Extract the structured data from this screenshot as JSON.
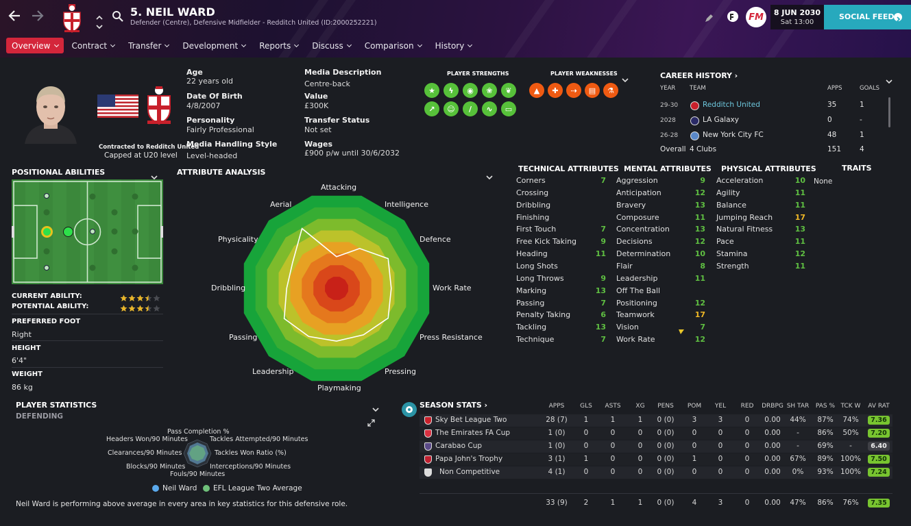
{
  "header": {
    "title": "5. NEIL WARD",
    "subtitle": "Defender (Centre), Defensive Midfielder - Redditch United (ID:2000252221)",
    "date": "8 JUN 2030",
    "time": "Sat 13:00",
    "social_feed": "SOCIAL FEED",
    "fm_logo": "FM"
  },
  "tabs": [
    "Overview",
    "Contract",
    "Transfer",
    "Development",
    "Reports",
    "Discuss",
    "Comparison",
    "History"
  ],
  "player": {
    "contract_line": "Contracted to Redditch United",
    "capped_line": "Capped at U20 level",
    "age_label": "Age",
    "age": "22 years old",
    "dob_label": "Date Of Birth",
    "dob": "4/8/2007",
    "personality_label": "Personality",
    "personality": "Fairly Professional",
    "media_style_label": "Media Handling Style",
    "media_style": "Level-headed",
    "media_desc_label": "Media Description",
    "media_desc": "Centre-back",
    "value_label": "Value",
    "value": "£300K",
    "transfer_label": "Transfer Status",
    "transfer": "Not set",
    "wages_label": "Wages",
    "wages": "£900 p/w until 30/6/2032"
  },
  "strengths": {
    "title": "PLAYER STRENGTHS",
    "icons": [
      "star-icon",
      "lightning-icon",
      "ball-icon",
      "rings-icon",
      "leaves-icon",
      "trend-icon",
      "head-icon",
      "leg-icon",
      "wave-icon",
      "pitch-icon"
    ],
    "color": "#57c13a"
  },
  "weaknesses": {
    "title": "PLAYER WEAKNESSES",
    "icons": [
      "boot-icon",
      "cross-icon",
      "runner-icon",
      "clipboard-icon",
      "flask-icon"
    ],
    "color": "#ef5a12"
  },
  "career": {
    "title": "CAREER HISTORY",
    "cols": [
      "YEAR",
      "TEAM",
      "APPS",
      "GOALS"
    ],
    "rows": [
      {
        "year": "29-30",
        "team": "Redditch United",
        "apps": "35",
        "goals": "1"
      },
      {
        "year": "2028",
        "team": "LA Galaxy",
        "apps": "0",
        "goals": "-"
      },
      {
        "year": "26-28",
        "team": "New York City FC",
        "apps": "48",
        "goals": "1"
      }
    ],
    "total": {
      "label": "Overall",
      "team": "4 Clubs",
      "apps": "151",
      "goals": "4"
    }
  },
  "positional": {
    "title": "POSITIONAL ABILITIES",
    "current_label": "CURRENT ABILITY:",
    "potential_label": "POTENTIAL ABILITY:",
    "current_stars": 3.5,
    "potential_stars": 3.5,
    "foot_label": "PREFERRED FOOT",
    "foot": "Right",
    "height_label": "HEIGHT",
    "height": "6'4\"",
    "weight_label": "WEIGHT",
    "weight": "86 kg"
  },
  "attribute_analysis": {
    "title": "ATTRIBUTE ANALYSIS",
    "axes": [
      "Attacking",
      "Intelligence",
      "Defence",
      "Work Rate",
      "Press Resistance",
      "Pressing",
      "Playmaking",
      "Leadership",
      "Passing",
      "Dribbling",
      "Physicality",
      "Aerial"
    ],
    "values": [
      0.33,
      0.48,
      0.62,
      0.57,
      0.62,
      0.56,
      0.55,
      0.58,
      0.63,
      0.52,
      0.53,
      0.72
    ],
    "ring_colors": [
      "#17a43a",
      "#37ad33",
      "#7dbb2c",
      "#bcc22a",
      "#e7a123",
      "#e5781d",
      "#d9471a",
      "#c82118"
    ]
  },
  "technical": {
    "title": "TECHNICAL ATTRIBUTES",
    "items": [
      {
        "name": "Corners",
        "value": "7",
        "c": "g"
      },
      {
        "name": "Crossing",
        "value": "",
        "c": "g"
      },
      {
        "name": "Dribbling",
        "value": "",
        "c": "g"
      },
      {
        "name": "Finishing",
        "value": "",
        "c": "g"
      },
      {
        "name": "First Touch",
        "value": "7",
        "c": "g"
      },
      {
        "name": "Free Kick Taking",
        "value": "9",
        "c": "g"
      },
      {
        "name": "Heading",
        "value": "11",
        "c": "g"
      },
      {
        "name": "Long Shots",
        "value": "",
        "c": "g"
      },
      {
        "name": "Long Throws",
        "value": "9",
        "c": "g"
      },
      {
        "name": "Marking",
        "value": "13",
        "c": "g"
      },
      {
        "name": "Passing",
        "value": "7",
        "c": "g"
      },
      {
        "name": "Penalty Taking",
        "value": "6",
        "c": "g"
      },
      {
        "name": "Tackling",
        "value": "13",
        "c": "g"
      },
      {
        "name": "Technique",
        "value": "7",
        "c": "g"
      }
    ]
  },
  "mental": {
    "title": "MENTAL ATTRIBUTES",
    "items": [
      {
        "name": "Aggression",
        "value": "9",
        "c": "g"
      },
      {
        "name": "Anticipation",
        "value": "12",
        "c": "g"
      },
      {
        "name": "Bravery",
        "value": "13",
        "c": "g"
      },
      {
        "name": "Composure",
        "value": "11",
        "c": "g"
      },
      {
        "name": "Concentration",
        "value": "13",
        "c": "g"
      },
      {
        "name": "Decisions",
        "value": "12",
        "c": "g"
      },
      {
        "name": "Determination",
        "value": "10",
        "c": "g"
      },
      {
        "name": "Flair",
        "value": "8",
        "c": "g"
      },
      {
        "name": "Leadership",
        "value": "11",
        "c": "g"
      },
      {
        "name": "Off The Ball",
        "value": "",
        "c": "g"
      },
      {
        "name": "Positioning",
        "value": "12",
        "c": "g"
      },
      {
        "name": "Teamwork",
        "value": "17",
        "c": "y"
      },
      {
        "name": "Vision",
        "value": "7",
        "c": "g"
      },
      {
        "name": "Work Rate",
        "value": "12",
        "c": "g"
      }
    ]
  },
  "physical": {
    "title": "PHYSICAL ATTRIBUTES",
    "items": [
      {
        "name": "Acceleration",
        "value": "10",
        "c": "g"
      },
      {
        "name": "Agility",
        "value": "11",
        "c": "g"
      },
      {
        "name": "Balance",
        "value": "11",
        "c": "g"
      },
      {
        "name": "Jumping Reach",
        "value": "17",
        "c": "y"
      },
      {
        "name": "Natural Fitness",
        "value": "13",
        "c": "g"
      },
      {
        "name": "Pace",
        "value": "11",
        "c": "g"
      },
      {
        "name": "Stamina",
        "value": "12",
        "c": "g"
      },
      {
        "name": "Strength",
        "value": "11",
        "c": "g"
      }
    ]
  },
  "traits": {
    "title": "TRAITS",
    "value": "None"
  },
  "player_stats": {
    "title": "PLAYER STATISTICS",
    "subtitle": "DEFENDING",
    "labels": [
      "Pass Completion %",
      "Headers Won/90 Minutes",
      "Tackles Attempted/90 Minutes",
      "Clearances/90 Minutes",
      "Tackles Won Ratio (%)",
      "Blocks/90 Minutes",
      "Interceptions/90 Minutes",
      "Fouls/90 Minutes"
    ],
    "legend_player": "Neil Ward",
    "legend_avg": "EFL League Two Average",
    "note": "Neil Ward is performing above average in every area in key statistics for this defensive role."
  },
  "season": {
    "title": "SEASON STATS",
    "cols": [
      "APPS",
      "GLS",
      "ASTS",
      "XG",
      "PENS",
      "POM",
      "YEL",
      "RED",
      "DRBPG",
      "SH TAR",
      "PAS %",
      "TCK W",
      "AV RAT"
    ],
    "rows": [
      {
        "comp": "Sky Bet League Two",
        "cells": [
          "28 (7)",
          "1",
          "1",
          "1",
          "0 (0)",
          "3",
          "3",
          "0",
          "0.00",
          "44%",
          "87%",
          "74%"
        ],
        "rating": "7.36"
      },
      {
        "comp": "The Emirates FA Cup",
        "cells": [
          "1 (0)",
          "0",
          "0",
          "0",
          "0 (0)",
          "0",
          "0",
          "0",
          "0.00",
          "-",
          "86%",
          "50%"
        ],
        "rating": "7.20"
      },
      {
        "comp": "Carabao Cup",
        "cells": [
          "1 (0)",
          "0",
          "0",
          "0",
          "0 (0)",
          "0",
          "0",
          "0",
          "0.00",
          "-",
          "69%",
          "-"
        ],
        "rating": "6.40"
      },
      {
        "comp": "Papa John's Trophy",
        "cells": [
          "3 (1)",
          "1",
          "0",
          "0",
          "0 (0)",
          "1",
          "0",
          "0",
          "0.00",
          "67%",
          "89%",
          "100%"
        ],
        "rating": "7.50"
      },
      {
        "comp": "Non Competitive",
        "cells": [
          "4 (1)",
          "0",
          "0",
          "0",
          "0 (0)",
          "0",
          "0",
          "0",
          "0.00",
          "0%",
          "93%",
          "100%"
        ],
        "rating": "7.24"
      }
    ],
    "total": {
      "cells": [
        "33 (9)",
        "2",
        "1",
        "1",
        "0 (0)",
        "4",
        "3",
        "0",
        "0.00",
        "47%",
        "86%",
        "76%"
      ],
      "rating": "7.35"
    }
  }
}
